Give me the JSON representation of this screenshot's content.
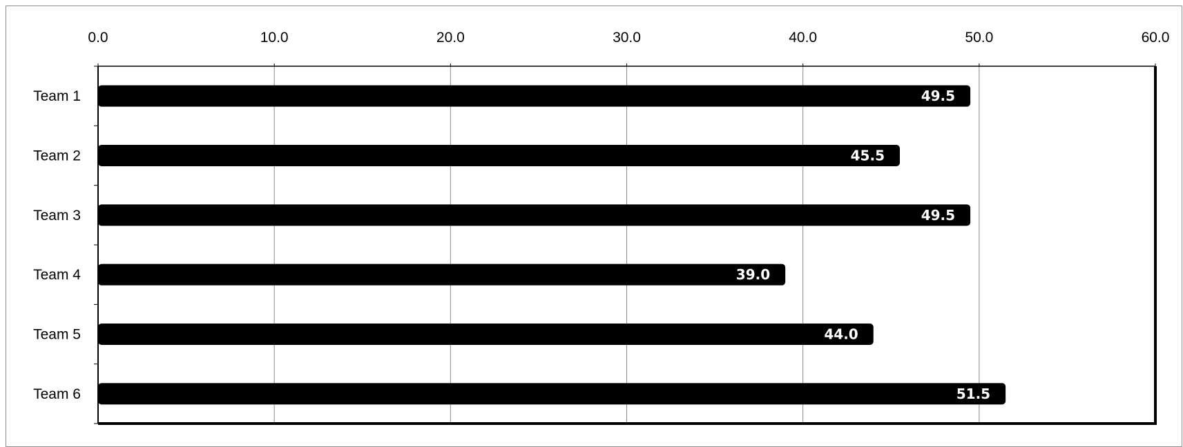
{
  "chart_data": {
    "type": "bar",
    "orientation": "horizontal",
    "categories": [
      "Team 1",
      "Team 2",
      "Team 3",
      "Team 4",
      "Team 5",
      "Team 6"
    ],
    "values": [
      49.5,
      45.5,
      49.5,
      39.0,
      44.0,
      51.5
    ],
    "data_labels": [
      "49.5",
      "45.5",
      "49.5",
      "39.0",
      "44.0",
      "51.5"
    ],
    "x_ticks": [
      "0.0",
      "10.0",
      "20.0",
      "30.0",
      "40.0",
      "50.0",
      "60.0"
    ],
    "xlim": [
      0,
      60
    ],
    "x_axis_position": "top",
    "grid": true,
    "legend": "none",
    "bar_color": "#000000",
    "data_label_color": "#ffffff",
    "title": "",
    "xlabel": "",
    "ylabel": ""
  }
}
